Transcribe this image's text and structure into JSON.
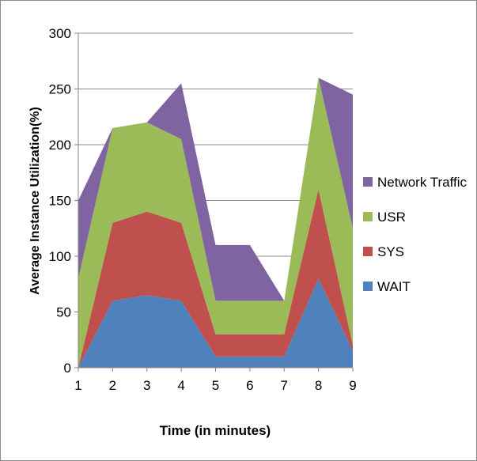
{
  "chart_data": {
    "type": "area",
    "stacked": true,
    "title": "",
    "xlabel": "Time (in minutes)",
    "ylabel": "Average Instance Utilization(%)",
    "x": [
      1,
      2,
      3,
      4,
      5,
      6,
      7,
      8,
      9
    ],
    "ylim": [
      0,
      300
    ],
    "yticks": [
      0,
      50,
      100,
      150,
      200,
      250,
      300
    ],
    "grid": "horizontal",
    "legend_position": "right",
    "series": [
      {
        "name": "WAIT",
        "color": "#4f81bd",
        "values": [
          0,
          60,
          65,
          60,
          10,
          10,
          10,
          80,
          15
        ]
      },
      {
        "name": "SYS",
        "color": "#c0504d",
        "values": [
          0,
          70,
          75,
          70,
          20,
          20,
          20,
          80,
          5
        ]
      },
      {
        "name": "USR",
        "color": "#9bbb59",
        "values": [
          80,
          85,
          80,
          75,
          30,
          30,
          30,
          100,
          105
        ]
      },
      {
        "name": "Network Traffic",
        "color": "#8064a2",
        "values": [
          70,
          0,
          0,
          50,
          50,
          50,
          0,
          0,
          120
        ]
      }
    ],
    "legend_order": [
      "Network Traffic",
      "USR",
      "SYS",
      "WAIT"
    ]
  }
}
